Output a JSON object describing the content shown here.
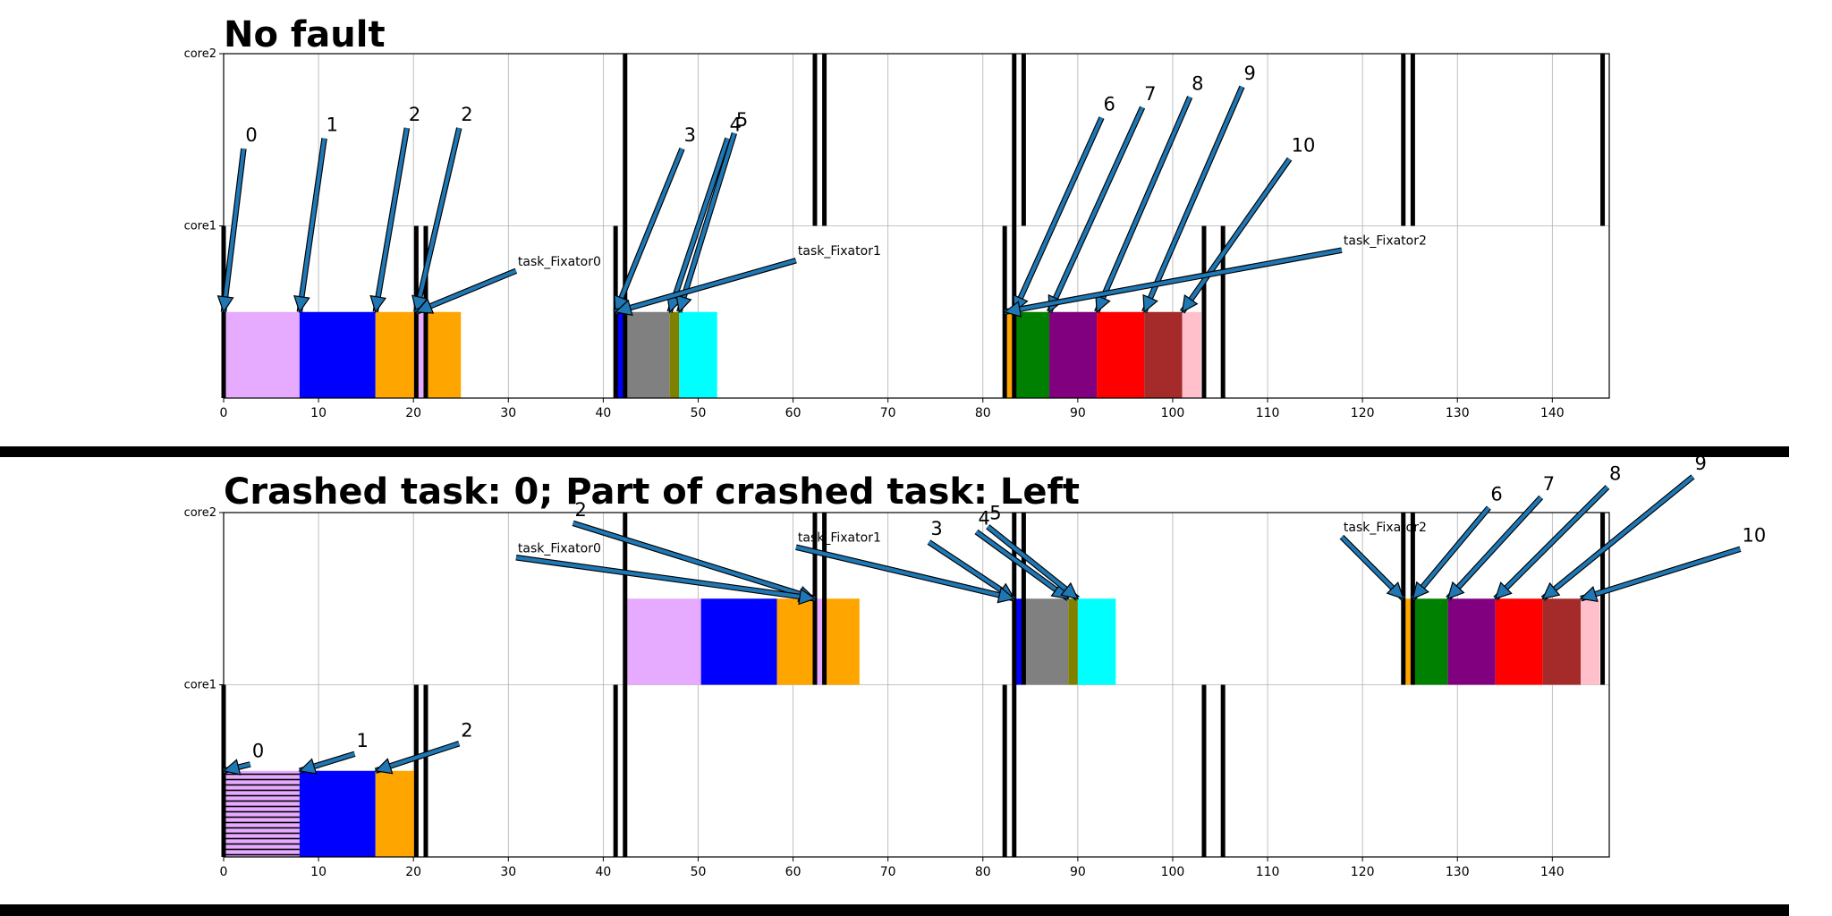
{
  "chart_data": [
    {
      "type": "gantt",
      "title": "No fault",
      "rows": [
        "core1",
        "core2"
      ],
      "xlim": [
        0,
        146
      ],
      "xticks": [
        0,
        10,
        20,
        30,
        40,
        50,
        60,
        70,
        80,
        90,
        100,
        110,
        120,
        130,
        140
      ],
      "grid": true,
      "markers": {
        "core1": [
          0,
          20.3,
          21.3,
          41.3,
          42.3,
          82.3,
          83.3,
          103.3,
          105.3
        ],
        "core2": [
          42.3,
          62.3,
          63.3,
          83.3,
          84.3,
          124.3,
          125.3,
          145.3
        ]
      },
      "bars": [
        {
          "row": "core1",
          "start": 0,
          "end": 8,
          "color": "#E6AAFF"
        },
        {
          "row": "core1",
          "start": 8,
          "end": 16,
          "color": "#0000FF"
        },
        {
          "row": "core1",
          "start": 16,
          "end": 20.3,
          "color": "#FFA500"
        },
        {
          "row": "core1",
          "start": 20.3,
          "end": 21.3,
          "color": "#E6AAFF"
        },
        {
          "row": "core1",
          "start": 21.3,
          "end": 25,
          "color": "#FFA500"
        },
        {
          "row": "core1",
          "start": 41.3,
          "end": 42.3,
          "color": "#0000FF"
        },
        {
          "row": "core1",
          "start": 42.3,
          "end": 47,
          "color": "#808080"
        },
        {
          "row": "core1",
          "start": 47,
          "end": 48,
          "color": "#808000"
        },
        {
          "row": "core1",
          "start": 48,
          "end": 52,
          "color": "#00FFFF"
        },
        {
          "row": "core1",
          "start": 82.3,
          "end": 83.3,
          "color": "#FFA500"
        },
        {
          "row": "core1",
          "start": 83.3,
          "end": 87,
          "color": "#008000"
        },
        {
          "row": "core1",
          "start": 87,
          "end": 92,
          "color": "#800080"
        },
        {
          "row": "core1",
          "start": 92,
          "end": 97,
          "color": "#FF0000"
        },
        {
          "row": "core1",
          "start": 97,
          "end": 101,
          "color": "#A52A2A"
        },
        {
          "row": "core1",
          "start": 101,
          "end": 103,
          "color": "#FFC0CB"
        }
      ],
      "annotations": [
        {
          "text": "0",
          "kind": "num",
          "tx": 2.3,
          "ty": 1.49,
          "ax": 0,
          "ay": 0.5
        },
        {
          "text": "1",
          "kind": "num",
          "tx": 10.8,
          "ty": 1.55,
          "ax": 8,
          "ay": 0.5
        },
        {
          "text": "2",
          "kind": "num",
          "tx": 19.5,
          "ty": 1.61,
          "ax": 16,
          "ay": 0.5
        },
        {
          "text": "2",
          "kind": "num",
          "tx": 25,
          "ty": 1.61,
          "ax": 20.3,
          "ay": 0.5
        },
        {
          "text": "task_Fixator0",
          "kind": "fix",
          "tx": 31,
          "ty": 0.77,
          "ax": 20.3,
          "ay": 0.5
        },
        {
          "text": "3",
          "kind": "num",
          "tx": 48.5,
          "ty": 1.49,
          "ax": 41.3,
          "ay": 0.5
        },
        {
          "text": "4",
          "kind": "num",
          "tx": 53.3,
          "ty": 1.55,
          "ax": 47,
          "ay": 0.5
        },
        {
          "text": "5",
          "kind": "num",
          "tx": 54,
          "ty": 1.58,
          "ax": 48,
          "ay": 0.5
        },
        {
          "text": "task_Fixator1",
          "kind": "fix",
          "tx": 60.5,
          "ty": 0.83,
          "ax": 41.3,
          "ay": 0.5
        },
        {
          "text": "6",
          "kind": "num",
          "tx": 92.7,
          "ty": 1.67,
          "ax": 83.3,
          "ay": 0.5
        },
        {
          "text": "7",
          "kind": "num",
          "tx": 97,
          "ty": 1.73,
          "ax": 87,
          "ay": 0.5
        },
        {
          "text": "8",
          "kind": "num",
          "tx": 102,
          "ty": 1.79,
          "ax": 92,
          "ay": 0.5
        },
        {
          "text": "9",
          "kind": "num",
          "tx": 107.5,
          "ty": 1.85,
          "ax": 97,
          "ay": 0.5
        },
        {
          "text": "10",
          "kind": "num",
          "tx": 112.5,
          "ty": 1.43,
          "ax": 101,
          "ay": 0.5
        },
        {
          "text": "task_Fixator2",
          "kind": "fix",
          "tx": 118,
          "ty": 0.89,
          "ax": 82.3,
          "ay": 0.5
        }
      ]
    },
    {
      "type": "gantt",
      "title": "Crashed task: 0; Part of crashed task: Left",
      "rows": [
        "core1",
        "core2"
      ],
      "xlim": [
        0,
        146
      ],
      "xticks": [
        0,
        10,
        20,
        30,
        40,
        50,
        60,
        70,
        80,
        90,
        100,
        110,
        120,
        130,
        140
      ],
      "grid": true,
      "markers": {
        "core1": [
          0,
          20.3,
          21.3,
          41.3,
          42.3,
          82.3,
          83.3,
          103.3,
          105.3
        ],
        "core2": [
          42.3,
          62.3,
          63.3,
          83.3,
          84.3,
          124.3,
          125.3,
          145.3
        ]
      },
      "bars": [
        {
          "row": "core1",
          "start": 0,
          "end": 8,
          "color": "#E6AAFF",
          "hatch": true
        },
        {
          "row": "core1",
          "start": 8,
          "end": 16,
          "color": "#0000FF"
        },
        {
          "row": "core1",
          "start": 16,
          "end": 20.3,
          "color": "#FFA500"
        },
        {
          "row": "core2",
          "start": 42.3,
          "end": 50.3,
          "color": "#E6AAFF"
        },
        {
          "row": "core2",
          "start": 50.3,
          "end": 58.3,
          "color": "#0000FF"
        },
        {
          "row": "core2",
          "start": 58.3,
          "end": 62.3,
          "color": "#FFA500"
        },
        {
          "row": "core2",
          "start": 62.3,
          "end": 63.3,
          "color": "#E6AAFF"
        },
        {
          "row": "core2",
          "start": 63.3,
          "end": 67,
          "color": "#FFA500"
        },
        {
          "row": "core2",
          "start": 83.3,
          "end": 84.3,
          "color": "#0000FF"
        },
        {
          "row": "core2",
          "start": 84.3,
          "end": 89,
          "color": "#808080"
        },
        {
          "row": "core2",
          "start": 89,
          "end": 90,
          "color": "#808000"
        },
        {
          "row": "core2",
          "start": 90,
          "end": 94,
          "color": "#00FFFF"
        },
        {
          "row": "core2",
          "start": 124.3,
          "end": 125.3,
          "color": "#FFA500"
        },
        {
          "row": "core2",
          "start": 125.3,
          "end": 129,
          "color": "#008000"
        },
        {
          "row": "core2",
          "start": 129,
          "end": 134,
          "color": "#800080"
        },
        {
          "row": "core2",
          "start": 134,
          "end": 139,
          "color": "#FF0000"
        },
        {
          "row": "core2",
          "start": 139,
          "end": 143,
          "color": "#A52A2A"
        },
        {
          "row": "core2",
          "start": 143,
          "end": 145,
          "color": "#FFC0CB"
        }
      ],
      "annotations": [
        {
          "text": "0",
          "kind": "num",
          "tx": 3,
          "ty": 0.58,
          "ax": 0,
          "ay": 0.5
        },
        {
          "text": "1",
          "kind": "num",
          "tx": 14,
          "ty": 0.64,
          "ax": 8,
          "ay": 0.5
        },
        {
          "text": "2",
          "kind": "num",
          "tx": 25,
          "ty": 0.7,
          "ax": 16,
          "ay": 0.5
        },
        {
          "text": "2",
          "kind": "num",
          "tx": 37,
          "ty": 1.98,
          "ax": 62.3,
          "ay": 1.5
        },
        {
          "text": "task_Fixator0",
          "kind": "fix",
          "tx": 31,
          "ty": 1.77,
          "ax": 62.3,
          "ay": 1.5
        },
        {
          "text": "3",
          "kind": "num",
          "tx": 74.5,
          "ty": 1.87,
          "ax": 83.3,
          "ay": 1.5
        },
        {
          "text": "4",
          "kind": "num",
          "tx": 79.5,
          "ty": 1.93,
          "ax": 89,
          "ay": 1.5
        },
        {
          "text": "5",
          "kind": "num",
          "tx": 80.7,
          "ty": 1.96,
          "ax": 90,
          "ay": 1.5
        },
        {
          "text": "task_Fixator1",
          "kind": "fix",
          "tx": 60.5,
          "ty": 1.83,
          "ax": 83.3,
          "ay": 1.5
        },
        {
          "text": "6",
          "kind": "num",
          "tx": 133.5,
          "ty": 2.07,
          "ax": 125.3,
          "ay": 1.5
        },
        {
          "text": "7",
          "kind": "num",
          "tx": 139,
          "ty": 2.13,
          "ax": 129,
          "ay": 1.5
        },
        {
          "text": "8",
          "kind": "num",
          "tx": 146,
          "ty": 2.19,
          "ax": 134,
          "ay": 1.5
        },
        {
          "text": "9",
          "kind": "num",
          "tx": 155,
          "ty": 2.25,
          "ax": 139,
          "ay": 1.5
        },
        {
          "text": "10",
          "kind": "num",
          "tx": 160,
          "ty": 1.83,
          "ax": 143,
          "ay": 1.5
        },
        {
          "text": "task_Fixator2",
          "kind": "fix",
          "tx": 118,
          "ty": 1.89,
          "ax": 124.3,
          "ay": 1.5
        }
      ]
    }
  ]
}
